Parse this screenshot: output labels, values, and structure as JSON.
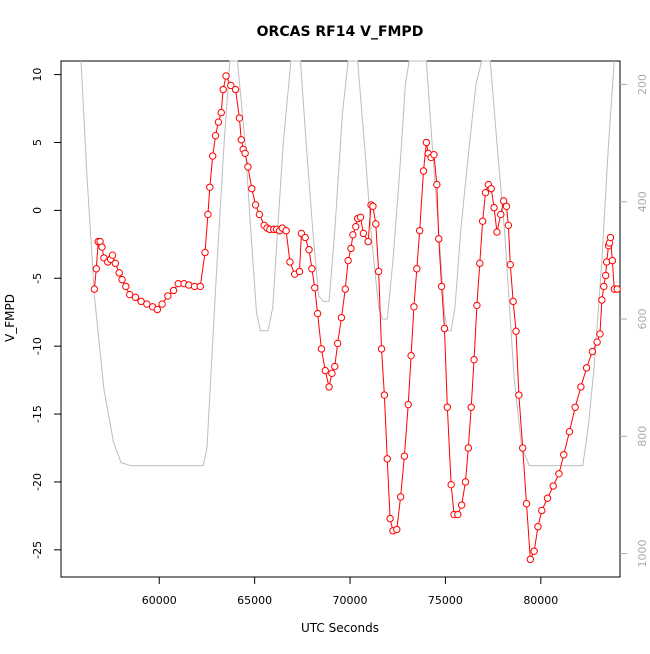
{
  "chart_data": {
    "type": "line",
    "title": "ORCAS RF14 V_FMPD",
    "xlabel": "UTC Seconds",
    "ylabel": "V_FMPD",
    "xlim": [
      54850,
      84150
    ],
    "ylim": [
      -27.0,
      11.0
    ],
    "x_ticks": [
      60000,
      65000,
      70000,
      75000,
      80000
    ],
    "y_ticks": [
      10,
      5,
      0,
      -5,
      -10,
      -15,
      -20,
      -25
    ],
    "y2_ticks": [
      200,
      400,
      600,
      800,
      1000
    ],
    "y2lim": [
      1040,
      160
    ],
    "grid": false,
    "legend": "none",
    "colors": {
      "primary": "#ff0000",
      "secondary": "#bebebe",
      "axis": "#000000",
      "right_axis": "#aaaaaa"
    },
    "series": [
      {
        "role": "primary",
        "marker": "open-circle",
        "points": [
          [
            56600,
            -5.8
          ],
          [
            56700,
            -4.3
          ],
          [
            56800,
            -2.3
          ],
          [
            56900,
            -2.3
          ],
          [
            57000,
            -2.7
          ],
          [
            57100,
            -3.5
          ],
          [
            57300,
            -3.8
          ],
          [
            57450,
            -3.6
          ],
          [
            57550,
            -3.3
          ],
          [
            57700,
            -3.9
          ],
          [
            57900,
            -4.6
          ],
          [
            58050,
            -5.1
          ],
          [
            58250,
            -5.6
          ],
          [
            58450,
            -6.2
          ],
          [
            58750,
            -6.4
          ],
          [
            59050,
            -6.7
          ],
          [
            59350,
            -6.9
          ],
          [
            59650,
            -7.1
          ],
          [
            59900,
            -7.3
          ],
          [
            60150,
            -6.9
          ],
          [
            60450,
            -6.3
          ],
          [
            60750,
            -5.9
          ],
          [
            61000,
            -5.4
          ],
          [
            61300,
            -5.4
          ],
          [
            61550,
            -5.5
          ],
          [
            61850,
            -5.6
          ],
          [
            62150,
            -5.6
          ],
          [
            62400,
            -3.1
          ],
          [
            62550,
            -0.3
          ],
          [
            62650,
            1.7
          ],
          [
            62800,
            4.0
          ],
          [
            62950,
            5.5
          ],
          [
            63100,
            6.5
          ],
          [
            63250,
            7.2
          ],
          [
            63350,
            8.9
          ],
          [
            63500,
            9.9
          ],
          [
            63750,
            9.2
          ],
          [
            64000,
            8.9
          ],
          [
            64200,
            6.8
          ],
          [
            64300,
            5.2
          ],
          [
            64400,
            4.5
          ],
          [
            64500,
            4.2
          ],
          [
            64650,
            3.2
          ],
          [
            64850,
            1.6
          ],
          [
            65050,
            0.4
          ],
          [
            65250,
            -0.3
          ],
          [
            65500,
            -1.1
          ],
          [
            65650,
            -1.3
          ],
          [
            65800,
            -1.4
          ],
          [
            66000,
            -1.4
          ],
          [
            66150,
            -1.4
          ],
          [
            66300,
            -1.5
          ],
          [
            66450,
            -1.3
          ],
          [
            66650,
            -1.5
          ],
          [
            66850,
            -3.8
          ],
          [
            67100,
            -4.7
          ],
          [
            67350,
            -4.5
          ],
          [
            67450,
            -1.7
          ],
          [
            67650,
            -2.0
          ],
          [
            67850,
            -2.9
          ],
          [
            68000,
            -4.3
          ],
          [
            68150,
            -5.7
          ],
          [
            68300,
            -7.6
          ],
          [
            68500,
            -10.2
          ],
          [
            68700,
            -11.8
          ],
          [
            68900,
            -13.0
          ],
          [
            69050,
            -12.0
          ],
          [
            69200,
            -11.5
          ],
          [
            69350,
            -9.8
          ],
          [
            69550,
            -7.9
          ],
          [
            69750,
            -5.8
          ],
          [
            69900,
            -3.7
          ],
          [
            70050,
            -2.8
          ],
          [
            70150,
            -1.8
          ],
          [
            70300,
            -1.2
          ],
          [
            70400,
            -0.6
          ],
          [
            70550,
            -0.5
          ],
          [
            70700,
            -1.7
          ],
          [
            70950,
            -2.3
          ],
          [
            71100,
            0.4
          ],
          [
            71200,
            0.3
          ],
          [
            71350,
            -1.0
          ],
          [
            71500,
            -4.5
          ],
          [
            71650,
            -10.2
          ],
          [
            71800,
            -13.6
          ],
          [
            71950,
            -18.3
          ],
          [
            72100,
            -22.7
          ],
          [
            72250,
            -23.6
          ],
          [
            72450,
            -23.5
          ],
          [
            72650,
            -21.1
          ],
          [
            72850,
            -18.1
          ],
          [
            73050,
            -14.3
          ],
          [
            73200,
            -10.7
          ],
          [
            73350,
            -7.1
          ],
          [
            73500,
            -4.3
          ],
          [
            73650,
            -1.5
          ],
          [
            73850,
            2.9
          ],
          [
            74000,
            5.0
          ],
          [
            74100,
            4.2
          ],
          [
            74250,
            3.9
          ],
          [
            74400,
            4.1
          ],
          [
            74550,
            1.9
          ],
          [
            74650,
            -2.1
          ],
          [
            74800,
            -5.6
          ],
          [
            74950,
            -8.7
          ],
          [
            75100,
            -14.5
          ],
          [
            75300,
            -20.2
          ],
          [
            75450,
            -22.4
          ],
          [
            75650,
            -22.4
          ],
          [
            75850,
            -21.7
          ],
          [
            76050,
            -20.0
          ],
          [
            76200,
            -17.5
          ],
          [
            76350,
            -14.5
          ],
          [
            76500,
            -11.0
          ],
          [
            76650,
            -7.0
          ],
          [
            76800,
            -3.9
          ],
          [
            76950,
            -0.8
          ],
          [
            77100,
            1.3
          ],
          [
            77250,
            1.9
          ],
          [
            77400,
            1.6
          ],
          [
            77550,
            0.2
          ],
          [
            77700,
            -1.6
          ],
          [
            77900,
            -0.3
          ],
          [
            78050,
            0.7
          ],
          [
            78200,
            0.3
          ],
          [
            78300,
            -1.1
          ],
          [
            78400,
            -4.0
          ],
          [
            78550,
            -6.7
          ],
          [
            78700,
            -8.9
          ],
          [
            78850,
            -13.6
          ],
          [
            79050,
            -17.5
          ],
          [
            79250,
            -21.6
          ],
          [
            79450,
            -25.7
          ],
          [
            79650,
            -25.1
          ],
          [
            79850,
            -23.3
          ],
          [
            80050,
            -22.1
          ],
          [
            80350,
            -21.2
          ],
          [
            80650,
            -20.3
          ],
          [
            80950,
            -19.4
          ],
          [
            81200,
            -18.0
          ],
          [
            81500,
            -16.3
          ],
          [
            81800,
            -14.5
          ],
          [
            82100,
            -13.0
          ],
          [
            82400,
            -11.6
          ],
          [
            82700,
            -10.4
          ],
          [
            82950,
            -9.7
          ],
          [
            83100,
            -9.1
          ],
          [
            83200,
            -6.6
          ],
          [
            83300,
            -5.6
          ],
          [
            83400,
            -4.8
          ],
          [
            83450,
            -3.8
          ],
          [
            83550,
            -2.6
          ],
          [
            83600,
            -2.4
          ],
          [
            83650,
            -2.0
          ],
          [
            83750,
            -3.7
          ],
          [
            83850,
            -5.8
          ],
          [
            84000,
            -5.8
          ]
        ]
      },
      {
        "role": "secondary",
        "axis": "right",
        "points": [
          [
            55900,
            160
          ],
          [
            56200,
            350
          ],
          [
            56600,
            560
          ],
          [
            57100,
            720
          ],
          [
            57600,
            810
          ],
          [
            58000,
            845
          ],
          [
            58500,
            850
          ],
          [
            59500,
            850
          ],
          [
            61000,
            850
          ],
          [
            62300,
            850
          ],
          [
            62500,
            820
          ],
          [
            62700,
            700
          ],
          [
            63000,
            520
          ],
          [
            63400,
            300
          ],
          [
            63700,
            160
          ],
          [
            64100,
            160
          ],
          [
            64500,
            300
          ],
          [
            64800,
            450
          ],
          [
            65100,
            590
          ],
          [
            65300,
            620
          ],
          [
            65700,
            620
          ],
          [
            65950,
            580
          ],
          [
            66200,
            450
          ],
          [
            66500,
            300
          ],
          [
            66900,
            160
          ],
          [
            67400,
            160
          ],
          [
            67700,
            300
          ],
          [
            68050,
            450
          ],
          [
            68350,
            560
          ],
          [
            68600,
            570
          ],
          [
            68900,
            570
          ],
          [
            69200,
            450
          ],
          [
            69600,
            250
          ],
          [
            69900,
            160
          ],
          [
            70400,
            160
          ],
          [
            70800,
            320
          ],
          [
            71150,
            470
          ],
          [
            71500,
            580
          ],
          [
            71700,
            600
          ],
          [
            71950,
            600
          ],
          [
            72250,
            500
          ],
          [
            72600,
            350
          ],
          [
            72900,
            200
          ],
          [
            73100,
            160
          ],
          [
            74000,
            160
          ],
          [
            74300,
            300
          ],
          [
            74650,
            450
          ],
          [
            74950,
            590
          ],
          [
            75100,
            620
          ],
          [
            75300,
            620
          ],
          [
            75500,
            580
          ],
          [
            75800,
            450
          ],
          [
            76200,
            320
          ],
          [
            76600,
            200
          ],
          [
            76900,
            160
          ],
          [
            77350,
            160
          ],
          [
            77700,
            300
          ],
          [
            78100,
            450
          ],
          [
            78600,
            700
          ],
          [
            79000,
            820
          ],
          [
            79400,
            850
          ],
          [
            80500,
            850
          ],
          [
            82200,
            850
          ],
          [
            82500,
            780
          ],
          [
            82800,
            680
          ],
          [
            83200,
            500
          ],
          [
            83550,
            300
          ],
          [
            83850,
            160
          ]
        ]
      }
    ]
  }
}
